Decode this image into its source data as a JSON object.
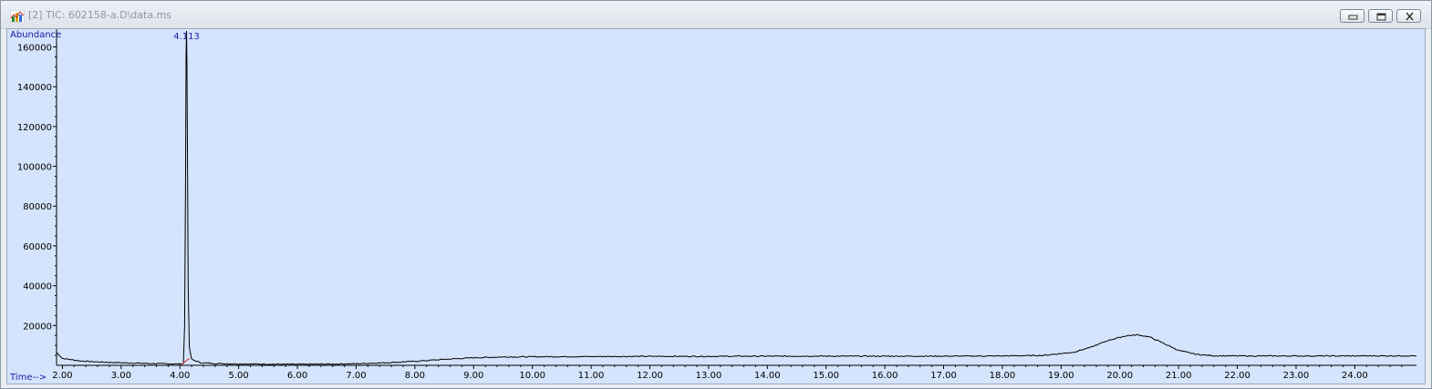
{
  "window": {
    "title": "[2] TIC: 602158-a.D\\data.ms",
    "buttons": [
      "minimize-icon",
      "restore-icon",
      "close-icon"
    ]
  },
  "colors": {
    "plot_background": "#d4e4fc",
    "trace": "#000000",
    "label_text": "#1a1aa6",
    "baseline_marker": "#d02020"
  },
  "chart_data": {
    "type": "line",
    "ylabel": "Abundance",
    "xlabel": "Time-->",
    "xlim": [
      1.9,
      25.05
    ],
    "ylim": [
      0,
      168000
    ],
    "xticks": [
      "2.00",
      "3.00",
      "4.00",
      "5.00",
      "6.00",
      "7.00",
      "8.00",
      "9.00",
      "10.00",
      "11.00",
      "12.00",
      "13.00",
      "14.00",
      "15.00",
      "16.00",
      "17.00",
      "18.00",
      "19.00",
      "20.00",
      "21.00",
      "22.00",
      "23.00",
      "24.00"
    ],
    "yticks": [
      "20000",
      "40000",
      "60000",
      "80000",
      "100000",
      "120000",
      "140000",
      "160000"
    ],
    "peak_labels": [
      {
        "time": 4.113,
        "text": "4.113"
      }
    ],
    "series": [
      {
        "values": [
          [
            1.9,
            6500
          ],
          [
            2.0,
            3500
          ],
          [
            2.3,
            2200
          ],
          [
            2.6,
            1700
          ],
          [
            3.0,
            1300
          ],
          [
            3.5,
            900
          ],
          [
            4.0,
            700
          ],
          [
            4.06,
            900
          ],
          [
            4.08,
            20000
          ],
          [
            4.095,
            90000
          ],
          [
            4.105,
            155000
          ],
          [
            4.113,
            168000
          ],
          [
            4.12,
            150000
          ],
          [
            4.13,
            100000
          ],
          [
            4.14,
            40000
          ],
          [
            4.16,
            9000
          ],
          [
            4.2,
            3000
          ],
          [
            4.35,
            1300
          ],
          [
            4.6,
            900
          ],
          [
            5.0,
            700
          ],
          [
            5.5,
            600
          ],
          [
            6.0,
            500
          ],
          [
            6.5,
            600
          ],
          [
            7.0,
            800
          ],
          [
            7.5,
            1300
          ],
          [
            8.0,
            2000
          ],
          [
            8.5,
            3000
          ],
          [
            9.0,
            3800
          ],
          [
            9.5,
            4200
          ],
          [
            10.0,
            4300
          ],
          [
            11.0,
            4400
          ],
          [
            12.0,
            4500
          ],
          [
            13.0,
            4500
          ],
          [
            14.0,
            4600
          ],
          [
            15.0,
            4600
          ],
          [
            16.0,
            4600
          ],
          [
            17.0,
            4600
          ],
          [
            18.0,
            4700
          ],
          [
            18.7,
            5000
          ],
          [
            19.2,
            6500
          ],
          [
            19.5,
            9000
          ],
          [
            19.8,
            12500
          ],
          [
            20.1,
            14800
          ],
          [
            20.3,
            15300
          ],
          [
            20.5,
            14300
          ],
          [
            20.75,
            11000
          ],
          [
            21.0,
            7500
          ],
          [
            21.3,
            5500
          ],
          [
            21.6,
            4800
          ],
          [
            22.0,
            4700
          ],
          [
            23.0,
            4700
          ],
          [
            24.0,
            4700
          ],
          [
            25.05,
            4800
          ]
        ]
      }
    ]
  }
}
